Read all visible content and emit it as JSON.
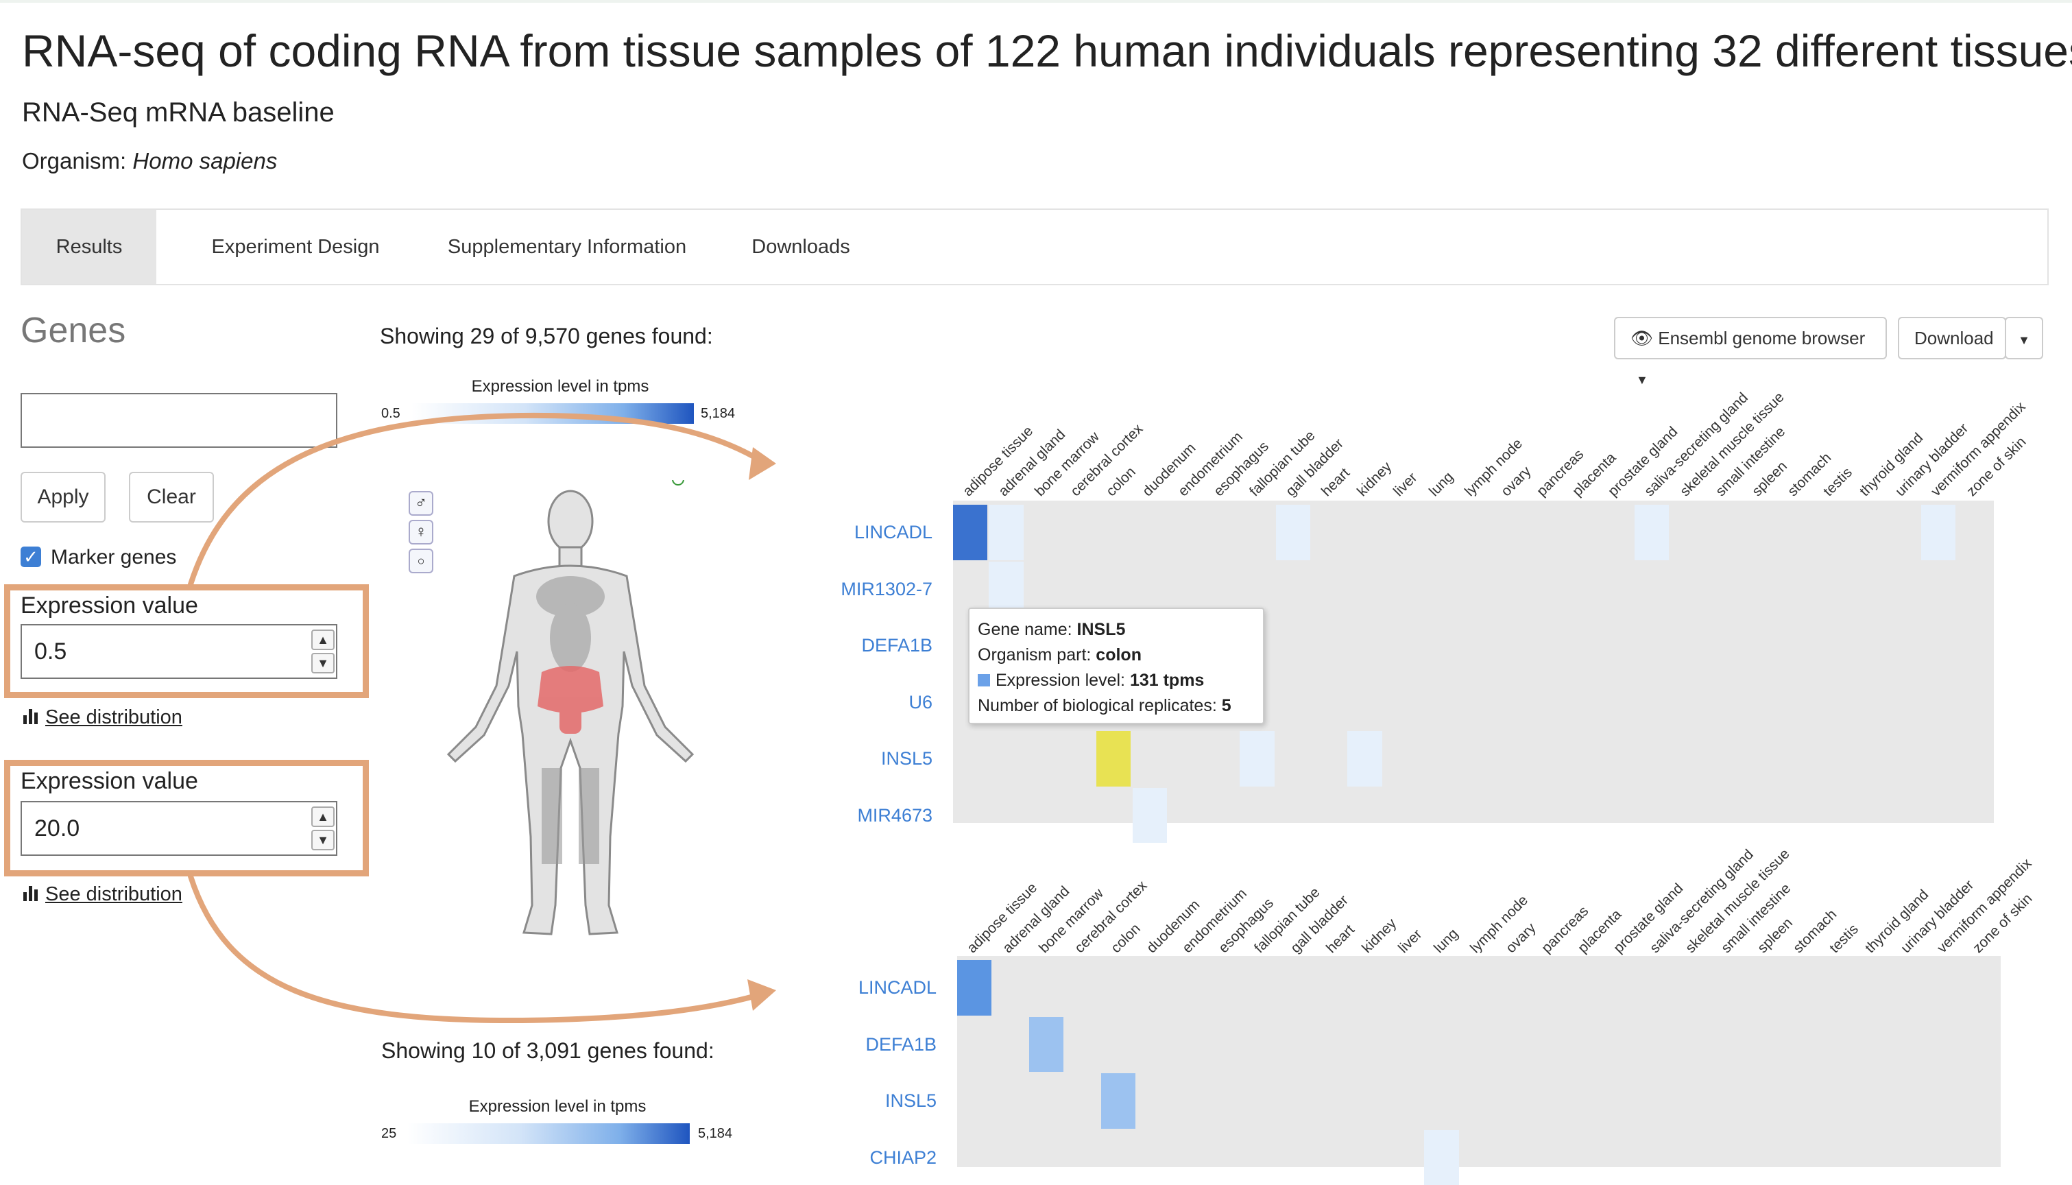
{
  "header": {
    "title": "RNA-seq of coding RNA from tissue samples of 122 human individuals representing 32 different tissues",
    "subtitle": "RNA-Seq mRNA baseline",
    "organism_label": "Organism:",
    "organism_value": "Homo sapiens"
  },
  "tabs": [
    {
      "label": "Results",
      "active": true
    },
    {
      "label": "Experiment Design",
      "active": false
    },
    {
      "label": "Supplementary Information",
      "active": false
    },
    {
      "label": "Downloads",
      "active": false
    }
  ],
  "sidebar": {
    "heading": "Genes",
    "search_value": "",
    "apply_label": "Apply",
    "clear_label": "Clear",
    "marker_genes_label": "Marker genes",
    "marker_genes_checked": true,
    "expression_panels": [
      {
        "label": "Expression value",
        "value": "0.5",
        "see_distribution": "See distribution"
      },
      {
        "label": "Expression value",
        "value": "20.0",
        "see_distribution": "See distribution"
      }
    ]
  },
  "toolbar": {
    "browser_button": "Ensembl genome browser",
    "download_button": "Download"
  },
  "top_panel": {
    "showing_text": "Showing 29 of 9,570 genes found:",
    "legend_title": "Expression level in tpms",
    "legend_min": "0.5",
    "legend_max": "5,184",
    "genes": [
      "LINCADL",
      "MIR1302-7",
      "DEFA1B",
      "U6",
      "INSL5",
      "MIR4673"
    ]
  },
  "bottom_panel": {
    "showing_text": "Showing 10 of 3,091 genes found:",
    "legend_title": "Expression level in tpms",
    "legend_min": "25",
    "legend_max": "5,184",
    "genes": [
      "LINCADL",
      "DEFA1B",
      "INSL5",
      "CHIAP2"
    ]
  },
  "tissues": [
    "adipose tissue",
    "adrenal gland",
    "bone marrow",
    "cerebral cortex",
    "colon",
    "duodenum",
    "endometrium",
    "esophagus",
    "fallopian tube",
    "gall bladder",
    "heart",
    "kidney",
    "liver",
    "lung",
    "lymph node",
    "ovary",
    "pancreas",
    "placenta",
    "prostate gland",
    "saliva-secreting gland",
    "skeletal muscle tissue",
    "small intestine",
    "spleen",
    "stomach",
    "testis",
    "thyroid gland",
    "urinary bladder",
    "vermiform appendix",
    "zone of skin"
  ],
  "heatmap_cells": {
    "top": [
      {
        "gene": 0,
        "tissue": 0,
        "color": "#3a72cf"
      },
      {
        "gene": 0,
        "tissue": 1,
        "color": "#e6f0fb"
      },
      {
        "gene": 0,
        "tissue": 9,
        "color": "#e6f0fb"
      },
      {
        "gene": 0,
        "tissue": 19,
        "color": "#e6f0fb"
      },
      {
        "gene": 0,
        "tissue": 27,
        "color": "#e6f0fb"
      },
      {
        "gene": 1,
        "tissue": 1,
        "color": "#e6f0fb"
      },
      {
        "gene": 4,
        "tissue": 4,
        "color": "#e8e253"
      },
      {
        "gene": 4,
        "tissue": 8,
        "color": "#e6f0fb"
      },
      {
        "gene": 4,
        "tissue": 11,
        "color": "#e6f0fb"
      },
      {
        "gene": 5,
        "tissue": 5,
        "color": "#e6f0fb"
      }
    ],
    "bottom": [
      {
        "gene": 0,
        "tissue": 0,
        "color": "#5b95e2"
      },
      {
        "gene": 1,
        "tissue": 2,
        "color": "#9cc2f0"
      },
      {
        "gene": 2,
        "tissue": 4,
        "color": "#9cc2f0"
      },
      {
        "gene": 3,
        "tissue": 13,
        "color": "#e6f0fb"
      }
    ]
  },
  "tooltip": {
    "gene_label": "Gene name:",
    "gene_value": "INSL5",
    "part_label": "Organism part:",
    "part_value": "colon",
    "expr_label": "Expression level:",
    "expr_value": "131 tpms",
    "reps_label": "Number of biological replicates:",
    "reps_value": "5"
  },
  "colors": {
    "highlight": "#e2a57a",
    "gene_link": "#3d7fd4",
    "heatmap_background": "#e8e8e8"
  },
  "icons": [
    "male-icon",
    "female-icon",
    "brain-icon",
    "eye-icon",
    "bar-chart-icon",
    "caret-down-icon"
  ]
}
